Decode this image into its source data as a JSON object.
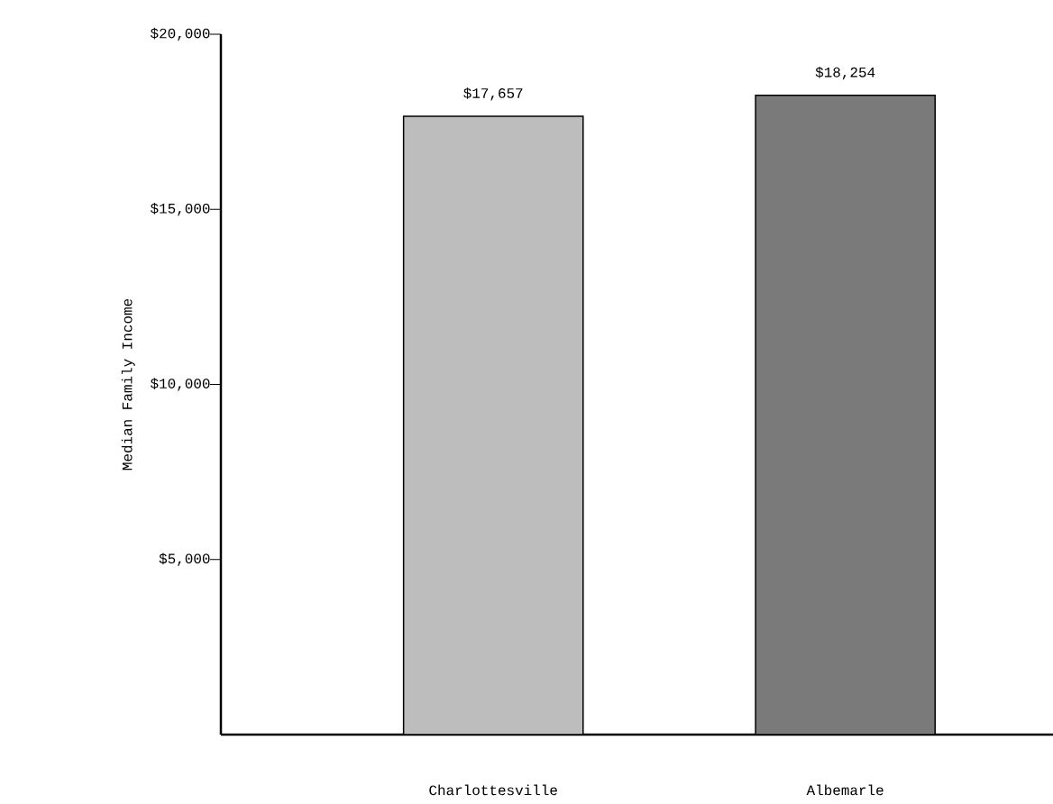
{
  "chart_data": {
    "type": "bar",
    "ylabel": "Median Family Income",
    "categories": [
      "Charlottesville",
      "Albemarle"
    ],
    "values": [
      17657,
      18254
    ],
    "value_labels": [
      "$17,657",
      "$18,254"
    ],
    "colors": [
      "#bdbdbd",
      "#7a7a7a"
    ],
    "ylim": [
      0,
      20000
    ],
    "yticks": [
      {
        "value": 5000,
        "label": "$5,000"
      },
      {
        "value": 10000,
        "label": "$10,000"
      },
      {
        "value": 15000,
        "label": "$15,000"
      },
      {
        "value": 20000,
        "label": "$20,000"
      }
    ],
    "grid": false
  }
}
